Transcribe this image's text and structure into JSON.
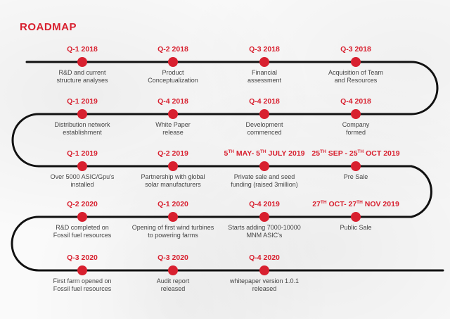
{
  "title": "ROADMAP",
  "colors": {
    "accent": "#d8202f",
    "track": "#111111",
    "text": "#444444"
  },
  "milestones": [
    {
      "row": 0,
      "col": 0,
      "label": "Q-1 2018",
      "lines": [
        "R&D and current",
        "structure analyses"
      ]
    },
    {
      "row": 0,
      "col": 1,
      "label": "Q-2 2018",
      "lines": [
        "Product",
        "Conceptualization"
      ]
    },
    {
      "row": 0,
      "col": 2,
      "label": "Q-3 2018",
      "lines": [
        "Financial",
        "assessment"
      ]
    },
    {
      "row": 0,
      "col": 3,
      "label": "Q-3 2018",
      "lines": [
        "Acquisition of Team",
        "and Resources"
      ]
    },
    {
      "row": 1,
      "col": 0,
      "label": "Q-1 2019",
      "lines": [
        "Distribution network",
        "establishment"
      ]
    },
    {
      "row": 1,
      "col": 1,
      "label": "Q-4 2018",
      "lines": [
        "White Paper",
        "release"
      ]
    },
    {
      "row": 1,
      "col": 2,
      "label": "Q-4 2018",
      "lines": [
        "Development",
        "commenced"
      ]
    },
    {
      "row": 1,
      "col": 3,
      "label": "Q-4 2018",
      "lines": [
        "Company",
        "formed"
      ]
    },
    {
      "row": 2,
      "col": 0,
      "label": "Q-1 2019",
      "lines": [
        "Over 5000 ASIC/Gpu's",
        "installed"
      ]
    },
    {
      "row": 2,
      "col": 1,
      "label": "Q-2 2019",
      "lines": [
        "Partnership with global",
        "solar manufacturers"
      ]
    },
    {
      "row": 2,
      "col": 2,
      "label_parts": [
        "5",
        "TH",
        " MAY- 5",
        "TH",
        " JULY 2019"
      ],
      "lines": [
        "Private sale and seed",
        "funding (raised 3million)"
      ]
    },
    {
      "row": 2,
      "col": 3,
      "label_parts": [
        "25",
        "TH",
        " SEP - 25",
        "TH",
        " OCT 2019"
      ],
      "lines": [
        "Pre Sale"
      ]
    },
    {
      "row": 3,
      "col": 0,
      "label": "Q-2 2020",
      "lines": [
        "R&D completed on",
        "Fossil fuel resources"
      ]
    },
    {
      "row": 3,
      "col": 1,
      "label": "Q-1 2020",
      "lines": [
        "Opening of first wind turbines",
        "to powering farms"
      ]
    },
    {
      "row": 3,
      "col": 2,
      "label": "Q-4 2019",
      "lines": [
        "Starts adding 7000-10000",
        "MNM ASIC's"
      ]
    },
    {
      "row": 3,
      "col": 3,
      "label_parts": [
        "27",
        "TH",
        " OCT- 27",
        "TH",
        " NOV 2019"
      ],
      "lines": [
        "Public Sale"
      ]
    },
    {
      "row": 4,
      "col": 0,
      "label": "Q-3 2020",
      "lines": [
        "First farm opened on",
        "Fossil fuel resources"
      ]
    },
    {
      "row": 4,
      "col": 1,
      "label": "Q-3 2020",
      "lines": [
        "Audit report",
        "released"
      ]
    },
    {
      "row": 4,
      "col": 2,
      "label": "Q-4 2020",
      "lines": [
        "whitepaper version 1.0.1",
        "released"
      ]
    }
  ]
}
